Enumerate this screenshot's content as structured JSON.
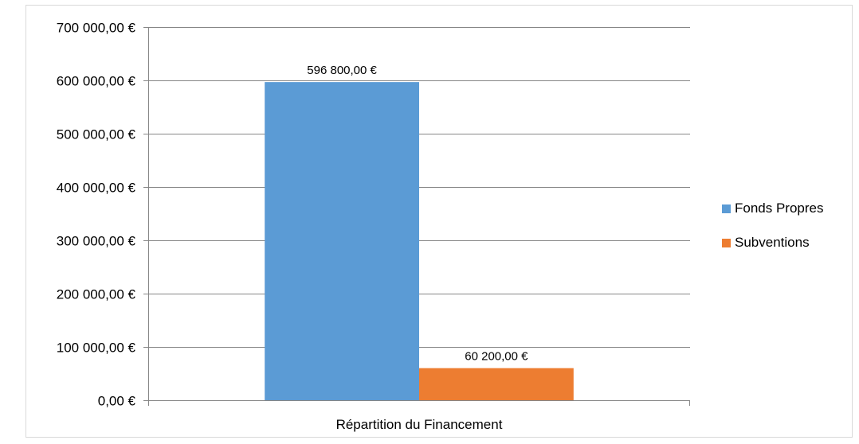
{
  "chart_data": {
    "type": "bar",
    "categories": [
      "Répartition du Financement"
    ],
    "series": [
      {
        "name": "Fonds Propres",
        "values": [
          596800
        ],
        "color": "#5b9bd5",
        "label": "596 800,00 €"
      },
      {
        "name": "Subventions",
        "values": [
          60200
        ],
        "color": "#ed7d31",
        "label": "60 200,00 €"
      }
    ],
    "y_ticks": [
      0,
      100000,
      200000,
      300000,
      400000,
      500000,
      600000,
      700000
    ],
    "y_tick_labels": [
      "0,00 €",
      "100 000,00 €",
      "200 000,00 €",
      "300 000,00 €",
      "400 000,00 €",
      "500 000,00 €",
      "600 000,00 €",
      "700 000,00 €"
    ],
    "ylim": [
      0,
      700000
    ],
    "grid": true,
    "legend_position": "right",
    "title": "",
    "xlabel": "",
    "ylabel": ""
  }
}
